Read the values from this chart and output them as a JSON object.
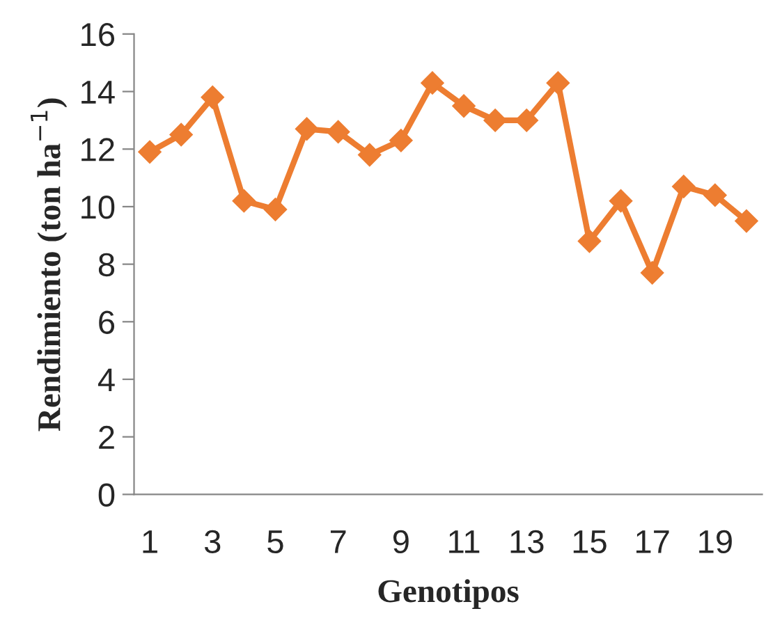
{
  "chart_data": {
    "type": "line",
    "xlabel": "Genotipos",
    "ylabel": "Rendimiento (ton ha$^{−1}$)",
    "categories": [
      "1",
      null,
      "3",
      null,
      "5",
      null,
      "7",
      null,
      "9",
      null,
      "11",
      null,
      "13",
      null,
      "15",
      null,
      "17",
      null,
      "19",
      null
    ],
    "series": [
      {
        "color": "#ed7d31",
        "values": [
          11.9,
          12.5,
          13.8,
          10.2,
          9.9,
          12.7,
          12.6,
          11.8,
          12.3,
          14.3,
          13.5,
          13.0,
          13.0,
          14.3,
          8.8,
          10.2,
          7.7,
          10.7,
          10.4,
          9.5
        ]
      }
    ],
    "ylim": [
      0,
      16
    ],
    "yticks": [
      0,
      2,
      4,
      6,
      8,
      10,
      12,
      14,
      16
    ],
    "marker": "diamond",
    "line_style": "solid",
    "grid": false,
    "legend": false
  }
}
